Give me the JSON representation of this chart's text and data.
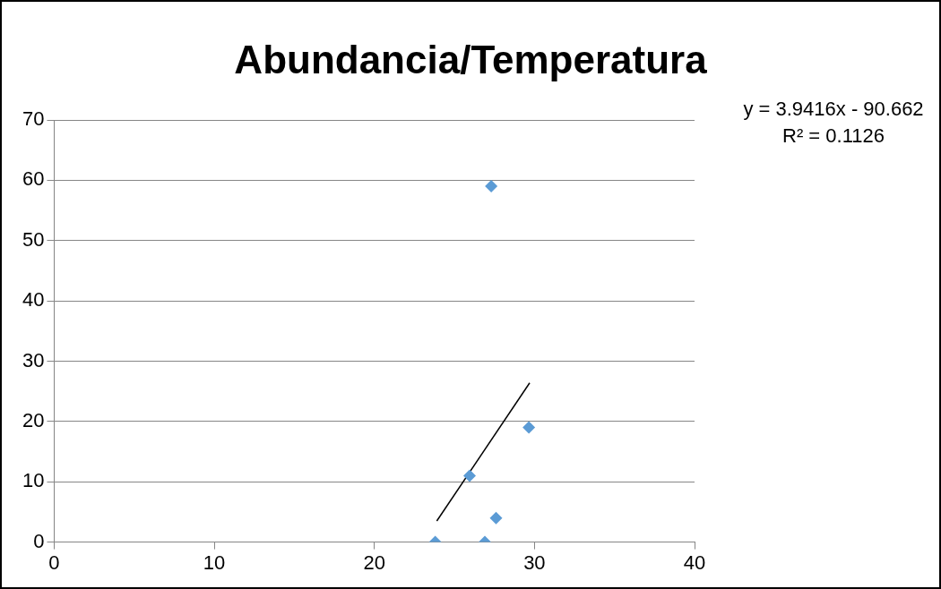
{
  "chart_data": {
    "type": "scatter",
    "title": "Abundancia/Temperatura",
    "x": [
      23.8,
      26.9,
      25.95,
      27.6,
      29.65,
      27.3
    ],
    "series": [
      {
        "color": "#5b9bd5",
        "marker": "diamond",
        "values": [
          0,
          0,
          11,
          4,
          19,
          59
        ]
      },
      {
        "type": "line",
        "color": "#000000",
        "marker": "none",
        "x": [
          23.9,
          29.7
        ],
        "values": [
          3.5,
          26.4
        ]
      }
    ],
    "xlim": [
      0,
      40
    ],
    "xticks": [
      0,
      10,
      20,
      30,
      40
    ],
    "ylim": [
      0,
      70
    ],
    "yticks": [
      0,
      10,
      20,
      30,
      40,
      50,
      60,
      70
    ],
    "grid": "y",
    "legend": false,
    "annotations": [
      "y = 3.9416x - 90.662",
      "R² = 0.1126"
    ]
  }
}
